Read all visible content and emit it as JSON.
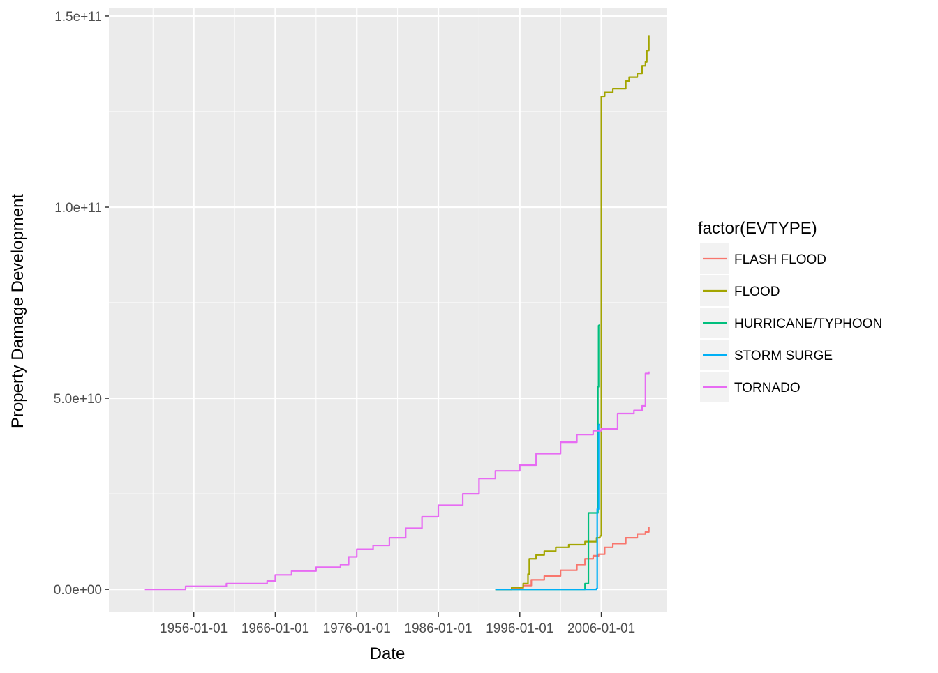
{
  "chart_data": {
    "type": "line",
    "xlabel": "Date",
    "ylabel": "Property Damage Development",
    "x_ticks": [
      "1956-01-01",
      "1966-01-01",
      "1976-01-01",
      "1986-01-01",
      "1996-01-01",
      "2006-01-01"
    ],
    "x_range": [
      "1945-08-01",
      "2014-01-01"
    ],
    "y_ticks": [
      "0.0e+00",
      "5.0e+10",
      "1.0e+11",
      "1.5e+11"
    ],
    "y_tick_values": [
      0,
      50000000000,
      100000000000,
      150000000000
    ],
    "ylim": [
      -6000000000,
      152000000000
    ],
    "grid": true,
    "background": "#ebebeb",
    "legend": {
      "title": "factor(EVTYPE)",
      "placement": "right"
    },
    "series": [
      {
        "name": "FLASH FLOOD",
        "color": "#F8766D",
        "points": [
          [
            "1993-01-01",
            0
          ],
          [
            "1995-01-01",
            300000000
          ],
          [
            "1996-06-01",
            1000000000
          ],
          [
            "1997-06-01",
            2500000000
          ],
          [
            "1999-01-01",
            3500000000
          ],
          [
            "2001-01-01",
            5000000000
          ],
          [
            "2003-01-01",
            6500000000
          ],
          [
            "2004-01-01",
            8000000000
          ],
          [
            "2005-01-01",
            8800000000
          ],
          [
            "2005-09-01",
            9200000000
          ],
          [
            "2006-06-01",
            11000000000
          ],
          [
            "2007-06-01",
            12000000000
          ],
          [
            "2009-01-01",
            13500000000
          ],
          [
            "2010-06-01",
            14500000000
          ],
          [
            "2011-06-01",
            15000000000
          ],
          [
            "2011-11-01",
            16300000000
          ]
        ]
      },
      {
        "name": "FLOOD",
        "color": "#A3A500",
        "points": [
          [
            "1993-01-01",
            0
          ],
          [
            "1995-01-01",
            500000000
          ],
          [
            "1996-06-01",
            1500000000
          ],
          [
            "1997-01-01",
            4000000000
          ],
          [
            "1997-03-01",
            8000000000
          ],
          [
            "1998-01-01",
            9000000000
          ],
          [
            "1999-01-01",
            10000000000
          ],
          [
            "2000-06-01",
            11000000000
          ],
          [
            "2002-01-01",
            11700000000
          ],
          [
            "2004-01-01",
            12500000000
          ],
          [
            "2005-06-01",
            13500000000
          ],
          [
            "2005-11-01",
            14000000000
          ],
          [
            "2006-01-01",
            129000000000
          ],
          [
            "2006-06-01",
            130000000000
          ],
          [
            "2007-06-01",
            131000000000
          ],
          [
            "2009-01-01",
            133000000000
          ],
          [
            "2009-06-01",
            134000000000
          ],
          [
            "2010-06-01",
            135000000000
          ],
          [
            "2011-01-01",
            137000000000
          ],
          [
            "2011-06-01",
            138000000000
          ],
          [
            "2011-08-01",
            141000000000
          ],
          [
            "2011-11-01",
            145000000000
          ]
        ]
      },
      {
        "name": "HURRICANE/TYPHOON",
        "color": "#00BF7D",
        "points": [
          [
            "1993-01-01",
            0
          ],
          [
            "2003-06-01",
            0
          ],
          [
            "2004-01-01",
            1500000000
          ],
          [
            "2004-06-01",
            20000000000
          ],
          [
            "2005-06-01",
            20000000000
          ],
          [
            "2005-08-01",
            53000000000
          ],
          [
            "2005-09-01",
            69000000000
          ],
          [
            "2005-10-01",
            69300000000
          ]
        ]
      },
      {
        "name": "STORM SURGE",
        "color": "#00B0F6",
        "points": [
          [
            "1993-01-01",
            0
          ],
          [
            "2005-06-01",
            200000000
          ],
          [
            "2005-07-01",
            21000000000
          ],
          [
            "2005-09-01",
            43000000000
          ],
          [
            "2005-10-01",
            43300000000
          ]
        ]
      },
      {
        "name": "TORNADO",
        "color": "#E76BF3",
        "points": [
          [
            "1950-01-01",
            0
          ],
          [
            "1955-01-01",
            800000000
          ],
          [
            "1960-01-01",
            1500000000
          ],
          [
            "1965-01-01",
            2200000000
          ],
          [
            "1966-01-01",
            3800000000
          ],
          [
            "1968-01-01",
            4800000000
          ],
          [
            "1971-01-01",
            5800000000
          ],
          [
            "1974-01-01",
            6500000000
          ],
          [
            "1975-01-01",
            8500000000
          ],
          [
            "1976-01-01",
            10500000000
          ],
          [
            "1978-01-01",
            11500000000
          ],
          [
            "1980-01-01",
            13500000000
          ],
          [
            "1982-01-01",
            16000000000
          ],
          [
            "1984-01-01",
            19000000000
          ],
          [
            "1986-01-01",
            22000000000
          ],
          [
            "1989-01-01",
            25000000000
          ],
          [
            "1991-01-01",
            29000000000
          ],
          [
            "1993-01-01",
            31000000000
          ],
          [
            "1996-01-01",
            32500000000
          ],
          [
            "1998-01-01",
            35500000000
          ],
          [
            "2001-01-01",
            38500000000
          ],
          [
            "2003-01-01",
            40500000000
          ],
          [
            "2005-01-01",
            41500000000
          ],
          [
            "2006-01-01",
            42000000000
          ],
          [
            "2008-01-01",
            46000000000
          ],
          [
            "2010-01-01",
            46800000000
          ],
          [
            "2011-01-01",
            48000000000
          ],
          [
            "2011-06-01",
            56500000000
          ],
          [
            "2011-11-01",
            57000000000
          ]
        ]
      }
    ]
  }
}
